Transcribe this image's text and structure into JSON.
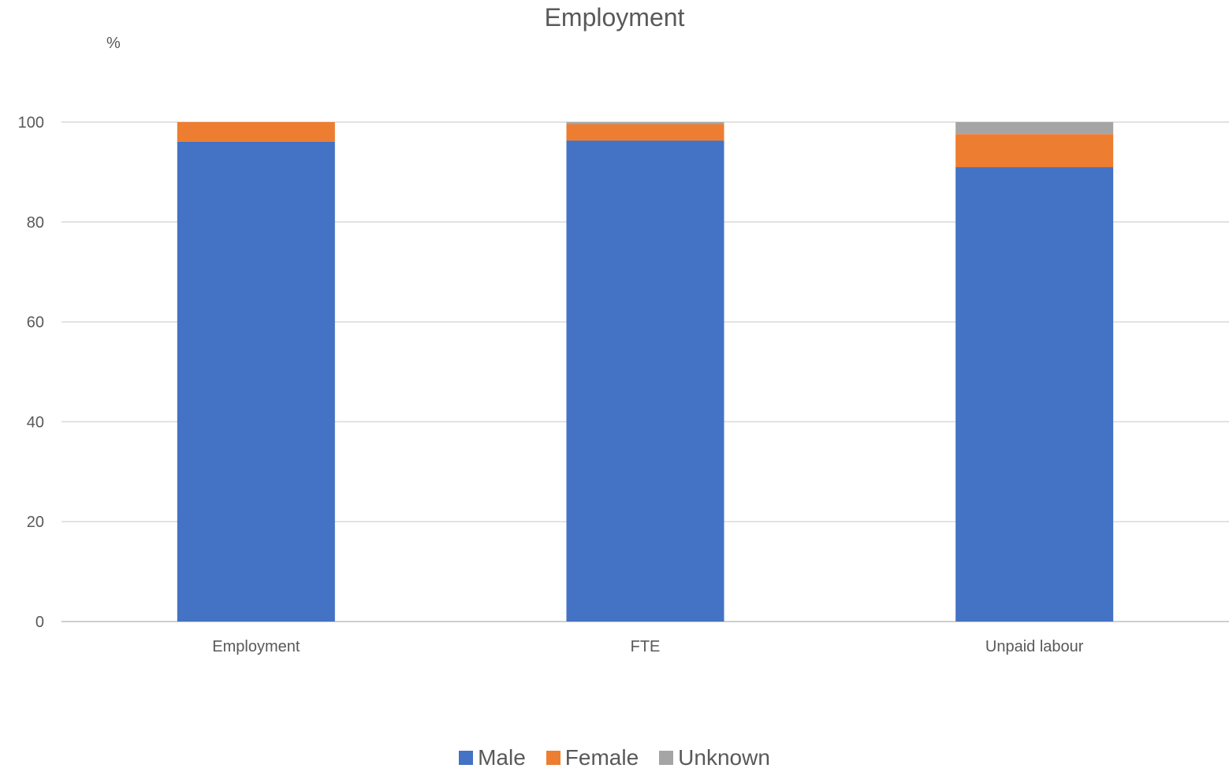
{
  "chart_data": {
    "type": "bar",
    "stacked": true,
    "title": "Employment",
    "ylabel": "%",
    "xlabel": "",
    "ylim": [
      0,
      100
    ],
    "yticks": [
      0,
      20,
      40,
      60,
      80,
      100
    ],
    "grid": true,
    "legend_position": "bottom",
    "categories": [
      "Employment",
      "FTE",
      "Unpaid labour"
    ],
    "series": [
      {
        "name": "Male",
        "color": "#4472C4",
        "values": [
          96.1,
          96.3,
          91.0
        ]
      },
      {
        "name": "Female",
        "color": "#ED7D31",
        "values": [
          3.9,
          3.3,
          6.6
        ]
      },
      {
        "name": "Unknown",
        "color": "#A5A5A5",
        "values": [
          0.0,
          0.4,
          2.4
        ]
      }
    ]
  }
}
